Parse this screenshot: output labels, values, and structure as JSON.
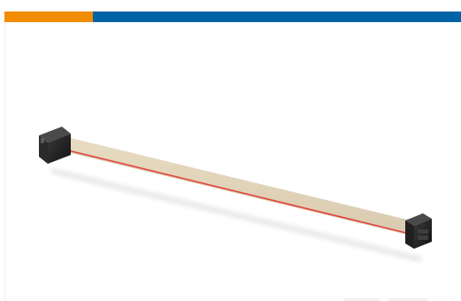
{
  "product": {
    "image_icon": "ribbon-cable-assembly-icon"
  },
  "colors": {
    "accent": "#f28c00",
    "brand": "#0063a6",
    "ribbon": "#e8dcc2",
    "ribbon_edge": "#d9cbb0",
    "stripe": "#e2453c",
    "connector": "#1f1f1f"
  }
}
